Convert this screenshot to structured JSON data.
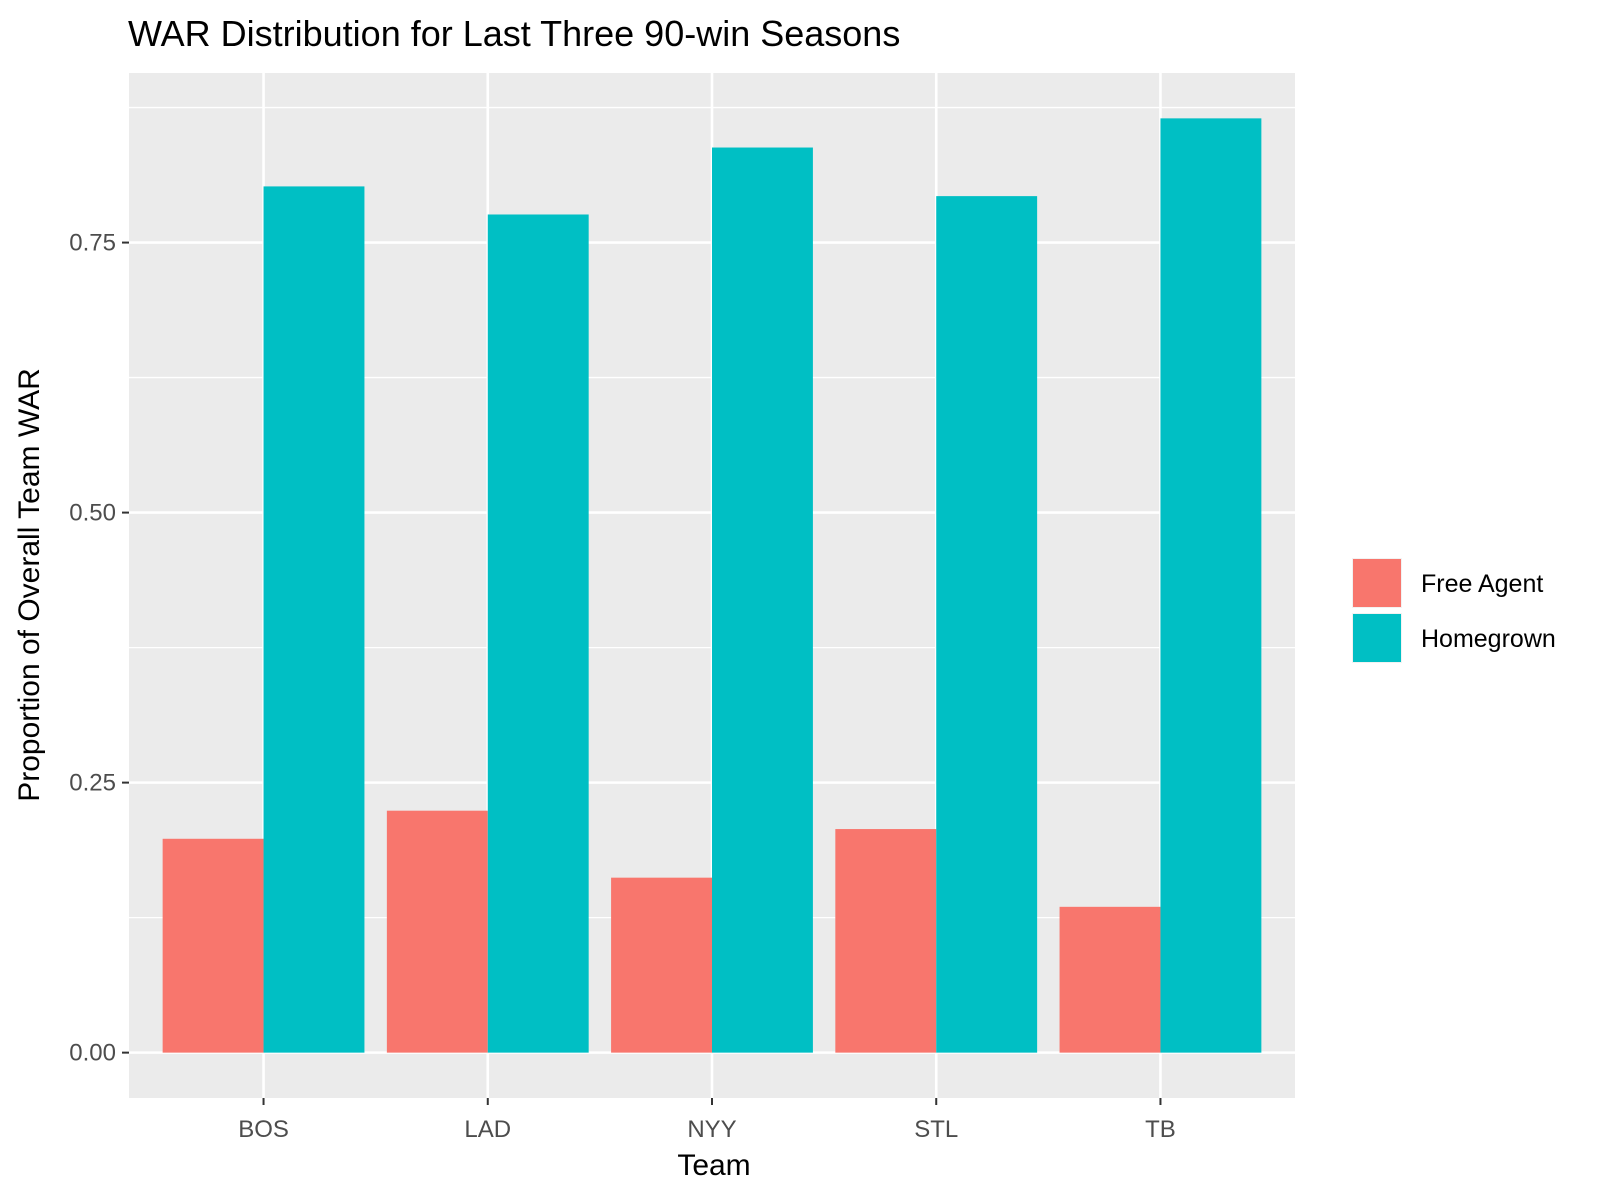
{
  "chart_data": {
    "type": "bar",
    "title": "WAR Distribution for Last Three 90-win Seasons",
    "xlabel": "Team",
    "ylabel": "Proportion of Overall Team WAR",
    "categories": [
      "BOS",
      "LAD",
      "NYY",
      "STL",
      "TB"
    ],
    "series": [
      {
        "name": "Free Agent",
        "color": "#F8766D",
        "values": [
          0.198,
          0.224,
          0.162,
          0.207,
          0.135
        ]
      },
      {
        "name": "Homegrown",
        "color": "#00BFC4",
        "values": [
          0.802,
          0.776,
          0.838,
          0.793,
          0.865
        ]
      }
    ],
    "ylim": [
      -0.042,
      0.907
    ],
    "yticks": [
      0.0,
      0.25,
      0.5,
      0.75
    ],
    "ytick_labels": [
      "0.00",
      "0.25",
      "0.50",
      "0.75"
    ],
    "grid": true,
    "legend_position": "right",
    "panel_background": "#EBEBEB"
  }
}
